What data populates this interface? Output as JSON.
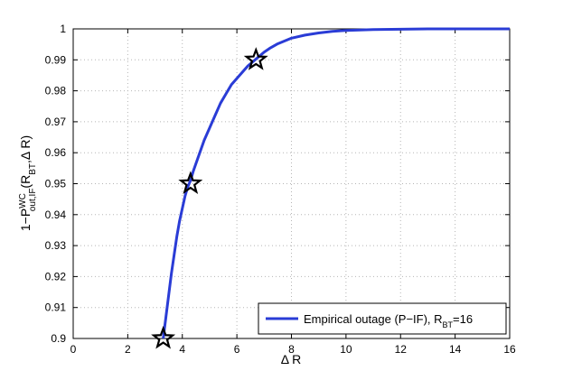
{
  "chart_data": {
    "type": "line",
    "xlabel": "Δ R",
    "ylabel": {
      "prefix": "1−P",
      "sup": "WC",
      "sub": "out,IF",
      "open": "(R",
      "sub2": "BT",
      "rest": ",Δ R)"
    },
    "xlim": [
      0,
      16
    ],
    "ylim": [
      0.9,
      1.0
    ],
    "x_ticks": [
      "0",
      "2",
      "4",
      "6",
      "8",
      "10",
      "12",
      "14",
      "16"
    ],
    "y_ticks": [
      "0.9",
      "0.91",
      "0.92",
      "0.93",
      "0.94",
      "0.95",
      "0.96",
      "0.97",
      "0.98",
      "0.99",
      "1"
    ],
    "grid": true,
    "legend_placement": "bottom-right",
    "series": [
      {
        "name": {
          "main": "Empirical outage (P−IF), R",
          "sub": "BT",
          "rest": "=16"
        },
        "color": "#2a3cd6",
        "points": [
          [
            3.3,
            0.9
          ],
          [
            3.4,
            0.907
          ],
          [
            3.5,
            0.914
          ],
          [
            3.6,
            0.921
          ],
          [
            3.7,
            0.927
          ],
          [
            3.8,
            0.933
          ],
          [
            3.9,
            0.938
          ],
          [
            4.0,
            0.942
          ],
          [
            4.1,
            0.946
          ],
          [
            4.2,
            0.949
          ],
          [
            4.3,
            0.951
          ],
          [
            4.4,
            0.954
          ],
          [
            4.6,
            0.959
          ],
          [
            4.8,
            0.964
          ],
          [
            5.0,
            0.968
          ],
          [
            5.2,
            0.972
          ],
          [
            5.4,
            0.976
          ],
          [
            5.6,
            0.979
          ],
          [
            5.8,
            0.982
          ],
          [
            6.0,
            0.984
          ],
          [
            6.2,
            0.986
          ],
          [
            6.4,
            0.988
          ],
          [
            6.6,
            0.9895
          ],
          [
            6.8,
            0.991
          ],
          [
            7.0,
            0.9925
          ],
          [
            7.2,
            0.9937
          ],
          [
            7.5,
            0.9952
          ],
          [
            8.0,
            0.997
          ],
          [
            8.5,
            0.998
          ],
          [
            9.0,
            0.9987
          ],
          [
            9.5,
            0.9992
          ],
          [
            10.0,
            0.9995
          ],
          [
            11.0,
            0.9998
          ],
          [
            12.0,
            0.9999
          ],
          [
            13.0,
            1.0
          ],
          [
            14.0,
            1.0
          ],
          [
            15.0,
            1.0
          ],
          [
            16.0,
            1.0
          ]
        ]
      }
    ],
    "markers": [
      {
        "x": 3.3,
        "y": 0.9
      },
      {
        "x": 4.3,
        "y": 0.95
      },
      {
        "x": 6.7,
        "y": 0.99
      }
    ]
  }
}
